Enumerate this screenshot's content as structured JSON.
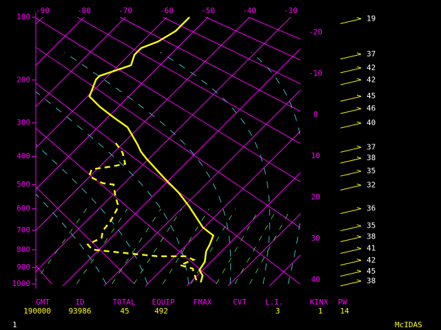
{
  "chart_data": {
    "type": "skewt",
    "ylim": [
      100,
      1000
    ],
    "yticks": [
      100,
      200,
      300,
      400,
      500,
      600,
      700,
      800,
      900,
      1000
    ],
    "xlim": [
      -90,
      -30
    ],
    "xticks": [
      -90,
      -80,
      -70,
      -60,
      -50,
      -40,
      -30
    ],
    "xticks_right": [
      -20,
      -10,
      0,
      10,
      20,
      30,
      40
    ],
    "grid_color": "#ff00ff",
    "series": [
      {
        "color": "#ffff00",
        "dashed": false,
        "pressure": [
          100,
          118,
          133,
          143,
          154,
          172,
          192,
          199,
          235,
          259,
          285,
          312,
          362,
          384,
          406,
          479,
          533,
          590,
          686,
          726,
          772,
          809,
          867,
          915,
          948,
          990
        ],
        "temperature": [
          -54.5,
          -54.5,
          -56.2,
          -58.7,
          -58.7,
          -57,
          -62,
          -62,
          -59.5,
          -54.5,
          -48.7,
          -42.8,
          -36.2,
          -33.7,
          -30.8,
          -21.2,
          -14.5,
          -8.7,
          -0.3,
          4.2,
          5.5,
          6.3,
          8.5,
          9.2,
          11.3,
          12.5
        ]
      },
      {
        "color": "#ffff00",
        "dashed": true,
        "pressure": [
          358,
          388,
          425,
          434,
          444,
          469,
          495,
          500,
          547,
          590,
          653,
          702,
          737,
          772,
          799,
          817,
          836,
          836,
          855,
          886,
          906,
          940,
          982
        ],
        "temperature": [
          -41.8,
          -37.8,
          -34.5,
          -37.2,
          -41.3,
          -40.2,
          -35.2,
          -32.3,
          -29,
          -25.8,
          -24.2,
          -23.7,
          -22.3,
          -24,
          -21.7,
          -13.3,
          -4.2,
          2.5,
          5.3,
          3.3,
          7.2,
          9,
          11.2
        ]
      }
    ],
    "winds": {
      "color": "#ffff00",
      "pressure": [
        102,
        153,
        177,
        200,
        235,
        264,
        301,
        371,
        406,
        451,
        503,
        600,
        679,
        733,
        794,
        859,
        923,
        982
      ],
      "speed": [
        19,
        37,
        42,
        42,
        45,
        46,
        40,
        37,
        38,
        35,
        32,
        36,
        35,
        38,
        41,
        42,
        45,
        38
      ]
    }
  },
  "footer": {
    "labels": [
      "GMT",
      "ID",
      "TOTAL",
      "EQUIP",
      "FMAX",
      "CVT",
      "L.I.",
      "KINX",
      "PW"
    ],
    "values": [
      190000,
      93986,
      45,
      492,
      null,
      null,
      3,
      1,
      14
    ]
  },
  "status": {
    "left": "1",
    "right": "McIDAS"
  }
}
